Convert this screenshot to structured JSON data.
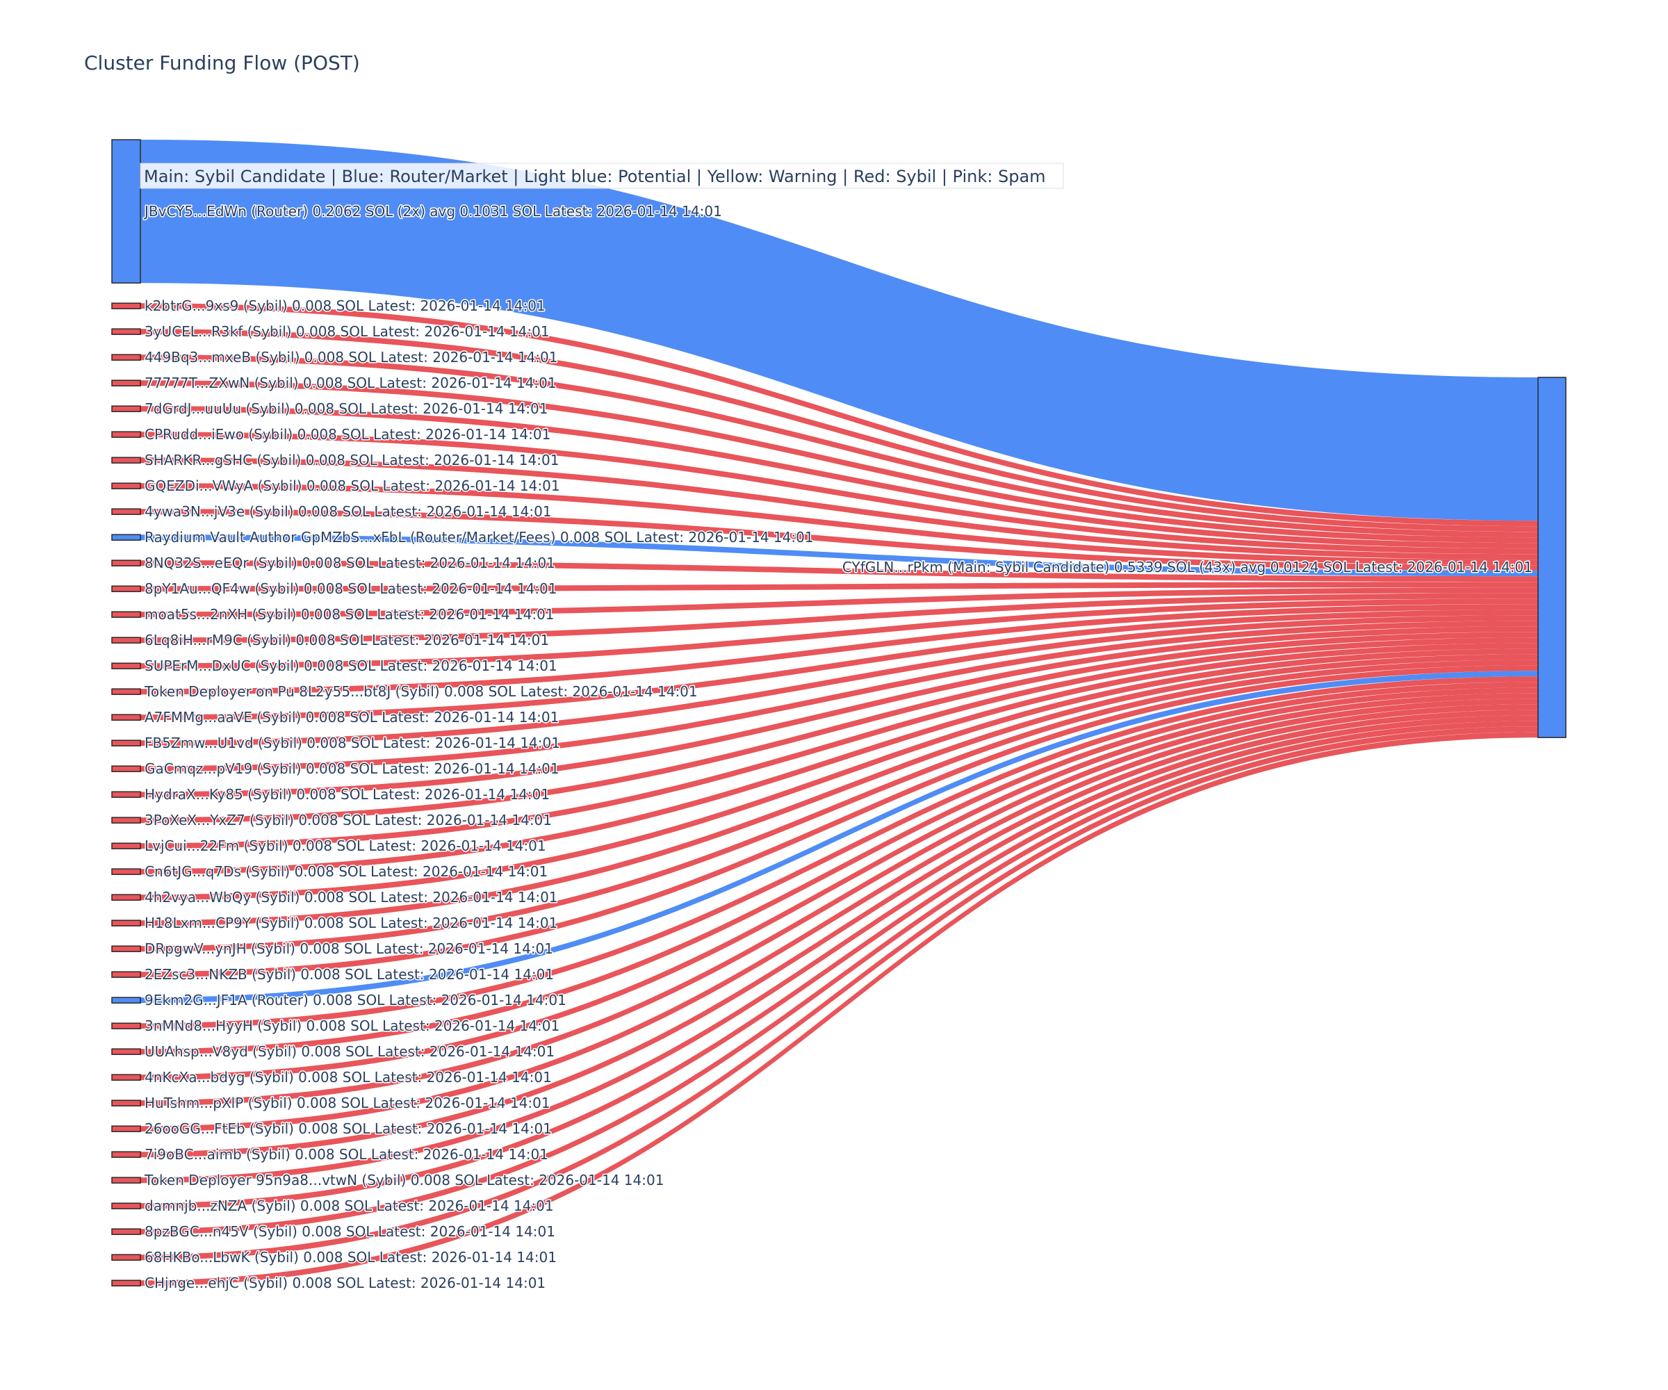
{
  "title": "Cluster Funding Flow (POST)",
  "legend_text": "Main: Sybil Candidate  |  Blue: Router/Market | Light blue: Potential | Yellow: Warning | Red: Sybil | Pink: Spam",
  "colors": {
    "router": "#4f8cf5",
    "sybil": "#e8555a",
    "main": "#4f8cf5",
    "node_border": "#2a2a2a",
    "text": "#2a3f5f"
  },
  "chart_data": {
    "type": "sankey",
    "title": "Cluster Funding Flow (POST)",
    "target": {
      "label": "CYfGLN...rPkm (Main: Sybil Candidate) 0.5339 SOL (43x) avg 0.0124 SOL Latest: 2026-01-14 14:01",
      "value": 0.5339
    },
    "sources": [
      {
        "label": "JBvCY5...EdWn (Router) 0.2062 SOL (2x) avg 0.1031 SOL Latest: 2026-01-14 14:01",
        "value": 0.2062,
        "type": "router",
        "order": 0
      },
      {
        "label": "k2btrG...9xs9 (Sybil) 0.008 SOL Latest: 2026-01-14 14:01",
        "value": 0.008,
        "type": "sybil",
        "order": 1
      },
      {
        "label": "3yUCEL...R3kf (Sybil) 0.008 SOL Latest: 2026-01-14 14:01",
        "value": 0.008,
        "type": "sybil",
        "order": 2
      },
      {
        "label": "449Bq3...mxeB (Sybil) 0.008 SOL Latest: 2026-01-14 14:01",
        "value": 0.008,
        "type": "sybil",
        "order": 3
      },
      {
        "label": "77777T...ZXwN (Sybil) 0.008 SOL Latest: 2026-01-14 14:01",
        "value": 0.008,
        "type": "sybil",
        "order": 4
      },
      {
        "label": "7dGrdJ...uuUu (Sybil) 0.008 SOL Latest: 2026-01-14 14:01",
        "value": 0.008,
        "type": "sybil",
        "order": 5
      },
      {
        "label": "CPRudd...iEwo (Sybil) 0.008 SOL Latest: 2026-01-14 14:01",
        "value": 0.008,
        "type": "sybil",
        "order": 6
      },
      {
        "label": "SHARKR...gSHC (Sybil) 0.008 SOL Latest: 2026-01-14 14:01",
        "value": 0.008,
        "type": "sybil",
        "order": 7
      },
      {
        "label": "GQEZDi...VWyA (Sybil) 0.008 SOL Latest: 2026-01-14 14:01",
        "value": 0.008,
        "type": "sybil",
        "order": 8
      },
      {
        "label": "4ywa3N...jV3e (Sybil) 0.008 SOL Latest: 2026-01-14 14:01",
        "value": 0.008,
        "type": "sybil",
        "order": 9
      },
      {
        "label": "Raydium Vault Author GpMZbS...xFbL (Router/Market/Fees) 0.008 SOL Latest: 2026-01-14 14:01",
        "value": 0.008,
        "type": "router",
        "order": 10
      },
      {
        "label": "8NQ32S...eEQr (Sybil) 0.008 SOL Latest: 2026-01-14 14:01",
        "value": 0.008,
        "type": "sybil",
        "order": 11
      },
      {
        "label": "8pY1Au...QF4w (Sybil) 0.008 SOL Latest: 2026-01-14 14:01",
        "value": 0.008,
        "type": "sybil",
        "order": 12
      },
      {
        "label": "moat5s...2nXH (Sybil) 0.008 SOL Latest: 2026-01-14 14:01",
        "value": 0.008,
        "type": "sybil",
        "order": 13
      },
      {
        "label": "6Lq8iH...rM9C (Sybil) 0.008 SOL Latest: 2026-01-14 14:01",
        "value": 0.008,
        "type": "sybil",
        "order": 14
      },
      {
        "label": "SUPErM...DxUC (Sybil) 0.008 SOL Latest: 2026-01-14 14:01",
        "value": 0.008,
        "type": "sybil",
        "order": 15
      },
      {
        "label": "Token Deployer on Pu 8L2y55...bt8J (Sybil) 0.008 SOL Latest: 2026-01-14 14:01",
        "value": 0.008,
        "type": "sybil",
        "order": 16
      },
      {
        "label": "A7FMMg...aaVE (Sybil) 0.008 SOL Latest: 2026-01-14 14:01",
        "value": 0.008,
        "type": "sybil",
        "order": 17
      },
      {
        "label": "FB5Zmw...U1vd (Sybil) 0.008 SOL Latest: 2026-01-14 14:01",
        "value": 0.008,
        "type": "sybil",
        "order": 18
      },
      {
        "label": "GaCmqz...pV19 (Sybil) 0.008 SOL Latest: 2026-01-14 14:01",
        "value": 0.008,
        "type": "sybil",
        "order": 19
      },
      {
        "label": "HydraX...Ky85 (Sybil) 0.008 SOL Latest: 2026-01-14 14:01",
        "value": 0.008,
        "type": "sybil",
        "order": 20
      },
      {
        "label": "3PoXeX...YxZ7 (Sybil) 0.008 SOL Latest: 2026-01-14 14:01",
        "value": 0.008,
        "type": "sybil",
        "order": 21
      },
      {
        "label": "LvjCui...22Fm (Sybil) 0.008 SOL Latest: 2026-01-14 14:01",
        "value": 0.008,
        "type": "sybil",
        "order": 22
      },
      {
        "label": "Cn6tJG...q7Ds (Sybil) 0.008 SOL Latest: 2026-01-14 14:01",
        "value": 0.008,
        "type": "sybil",
        "order": 23
      },
      {
        "label": "4h2vya...WbQy (Sybil) 0.008 SOL Latest: 2026-01-14 14:01",
        "value": 0.008,
        "type": "sybil",
        "order": 24
      },
      {
        "label": "H18Lxm...CP9Y (Sybil) 0.008 SOL Latest: 2026-01-14 14:01",
        "value": 0.008,
        "type": "sybil",
        "order": 25
      },
      {
        "label": "DRpgwV...ynJH (Sybil) 0.008 SOL Latest: 2026-01-14 14:01",
        "value": 0.008,
        "type": "sybil",
        "order": 26
      },
      {
        "label": "2EZsc3...NKZB (Sybil) 0.008 SOL Latest: 2026-01-14 14:01",
        "value": 0.008,
        "type": "sybil",
        "order": 27
      },
      {
        "label": "9Ekm2G...JF1A (Router) 0.008 SOL Latest: 2026-01-14 14:01",
        "value": 0.008,
        "type": "router",
        "order": 28
      },
      {
        "label": "3nMNd8...HyyH (Sybil) 0.008 SOL Latest: 2026-01-14 14:01",
        "value": 0.008,
        "type": "sybil",
        "order": 29
      },
      {
        "label": "UUAhsp...V8yd (Sybil) 0.008 SOL Latest: 2026-01-14 14:01",
        "value": 0.008,
        "type": "sybil",
        "order": 30
      },
      {
        "label": "4nKcXa...bdyg (Sybil) 0.008 SOL Latest: 2026-01-14 14:01",
        "value": 0.008,
        "type": "sybil",
        "order": 31
      },
      {
        "label": "HuTshm...pXlP (Sybil) 0.008 SOL Latest: 2026-01-14 14:01",
        "value": 0.008,
        "type": "sybil",
        "order": 32
      },
      {
        "label": "26ooGG...FtEb (Sybil) 0.008 SOL Latest: 2026-01-14 14:01",
        "value": 0.008,
        "type": "sybil",
        "order": 33
      },
      {
        "label": "7i9oBC...aimb (Sybil) 0.008 SOL Latest: 2026-01-14 14:01",
        "value": 0.008,
        "type": "sybil",
        "order": 34
      },
      {
        "label": "Token Deployer 95n9a8...vtwN (Sybil) 0.008 SOL Latest: 2026-01-14 14:01",
        "value": 0.008,
        "type": "sybil",
        "order": 35
      },
      {
        "label": "damnjb...zNZA (Sybil) 0.008 SOL Latest: 2026-01-14 14:01",
        "value": 0.008,
        "type": "sybil",
        "order": 36
      },
      {
        "label": "8pzBGC...n45V (Sybil) 0.008 SOL Latest: 2026-01-14 14:01",
        "value": 0.008,
        "type": "sybil",
        "order": 37
      },
      {
        "label": "68HKBo...LbwK (Sybil) 0.008 SOL Latest: 2026-01-14 14:01",
        "value": 0.008,
        "type": "sybil",
        "order": 38
      },
      {
        "label": "CHjnge...ehjC (Sybil) 0.008 SOL Latest: 2026-01-14 14:01",
        "value": 0.008,
        "type": "sybil",
        "order": 39
      }
    ]
  }
}
